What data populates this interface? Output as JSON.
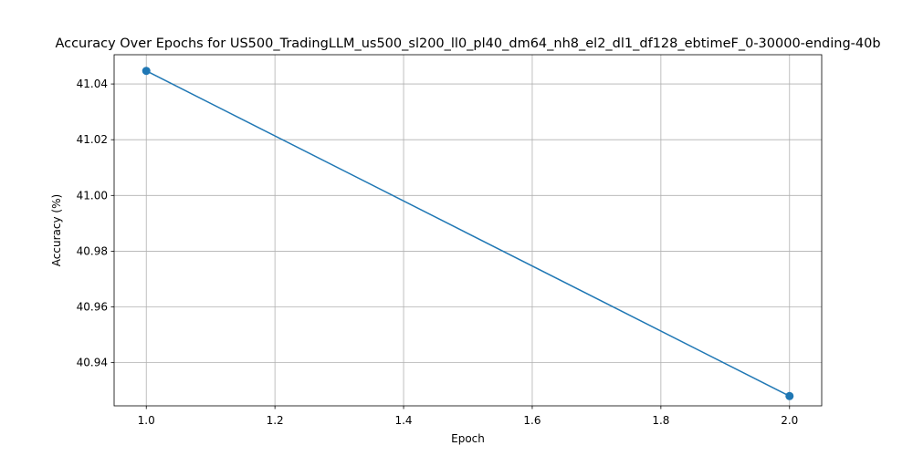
{
  "chart_data": {
    "type": "line",
    "title": "Accuracy Over Epochs for US500_TradingLLM_us500_sl200_ll0_pl40_dm64_nh8_el2_dl1_df128_ebtimeF_0-30000-ending-40b",
    "xlabel": "Epoch",
    "ylabel": "Accuracy (%)",
    "xlim": [
      0.95,
      2.05
    ],
    "ylim": [
      40.9245,
      41.0505
    ],
    "xticks": [
      1.0,
      1.2,
      1.4,
      1.6,
      1.8,
      2.0
    ],
    "xtick_labels": [
      "1.0",
      "1.2",
      "1.4",
      "1.6",
      "1.8",
      "2.0"
    ],
    "yticks": [
      40.94,
      40.96,
      40.98,
      41.0,
      41.02,
      41.04
    ],
    "ytick_labels": [
      "40.94",
      "40.96",
      "40.98",
      "41.00",
      "41.02",
      "41.04"
    ],
    "grid": true,
    "series": [
      {
        "x": [
          1.0,
          2.0
        ],
        "y": [
          41.0447,
          40.928
        ],
        "color": "#1f77b4",
        "marker": "circle"
      }
    ]
  }
}
